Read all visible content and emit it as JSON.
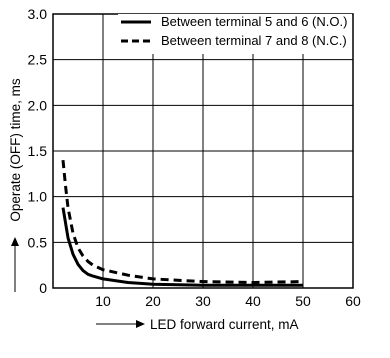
{
  "chart_data": {
    "type": "line",
    "title": "",
    "xlabel": "LED forward current, mA",
    "ylabel": "Operate (OFF) time, ms",
    "xlim": [
      0,
      60
    ],
    "ylim": [
      0,
      3.0
    ],
    "x_ticks": [
      "10",
      "20",
      "30",
      "40",
      "50",
      "60"
    ],
    "y_ticks": [
      "0",
      "0.5",
      "1.0",
      "1.5",
      "2.0",
      "2.5",
      "3.0"
    ],
    "grid": true,
    "legend_position": "top-right",
    "series": [
      {
        "name": "Between terminal 5 and 6 (N.O.)",
        "style": "solid",
        "x": [
          2,
          3,
          4,
          5,
          6,
          7,
          8,
          10,
          15,
          20,
          30,
          40,
          50
        ],
        "y": [
          0.88,
          0.55,
          0.37,
          0.26,
          0.19,
          0.15,
          0.13,
          0.1,
          0.06,
          0.04,
          0.03,
          0.03,
          0.03
        ]
      },
      {
        "name": "Between terminal 7 and 8 (N.C.)",
        "style": "dashed",
        "x": [
          2,
          2.5,
          3,
          4,
          5,
          6,
          7,
          8,
          10,
          15,
          20,
          30,
          40,
          50
        ],
        "y": [
          1.4,
          1.12,
          0.88,
          0.6,
          0.44,
          0.35,
          0.29,
          0.25,
          0.2,
          0.14,
          0.1,
          0.07,
          0.06,
          0.07
        ]
      }
    ]
  }
}
